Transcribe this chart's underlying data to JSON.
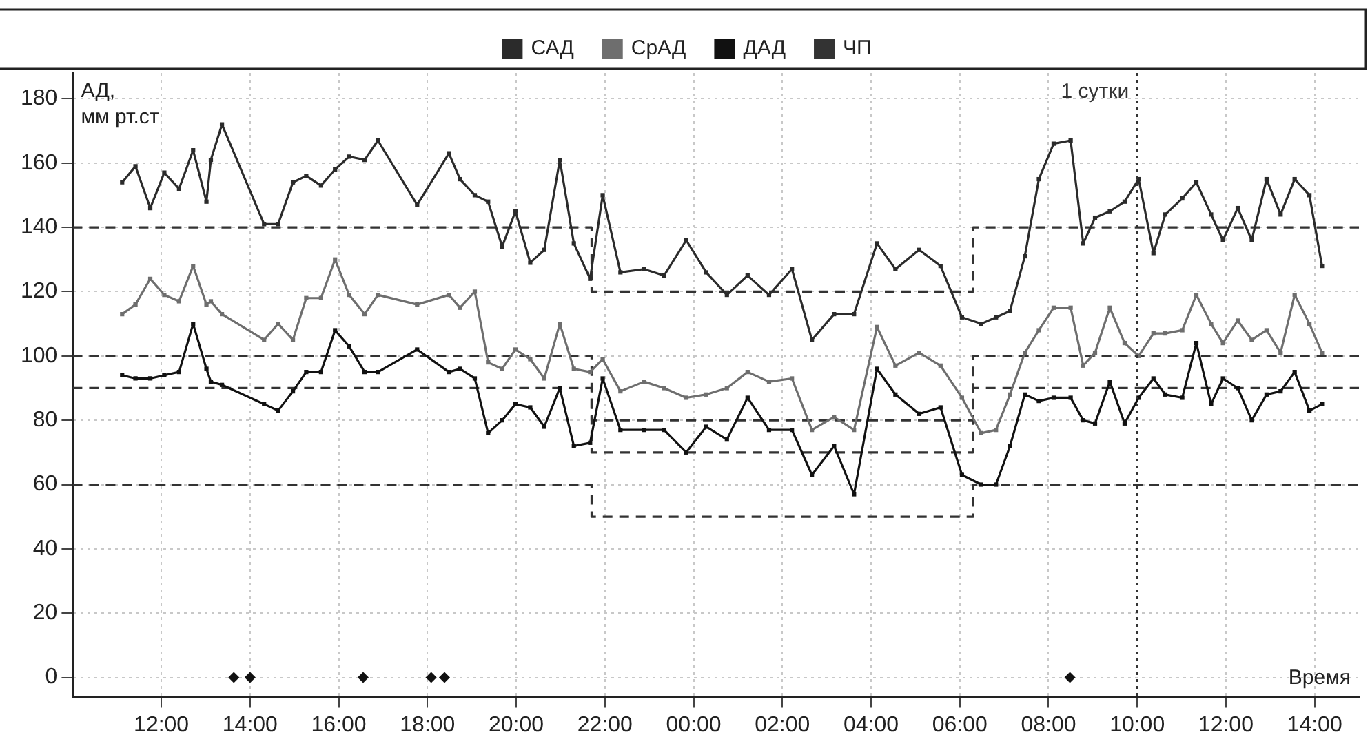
{
  "chart_data": {
    "type": "line",
    "ylabel": "АД, мм рт.ст",
    "xlabel": "Время",
    "marker": "square",
    "line_style": "solid",
    "grid": true,
    "legend": "top",
    "xlim": [
      "2000-01-01T10:00",
      "2000-01-02T15:00"
    ],
    "ylim": [
      -6,
      188
    ],
    "xticks": [
      {
        "value": "2000-01-01T12:00",
        "label": "12:00"
      },
      {
        "value": "2000-01-01T14:00",
        "label": "14:00"
      },
      {
        "value": "2000-01-01T16:00",
        "label": "16:00"
      },
      {
        "value": "2000-01-01T18:00",
        "label": "18:00"
      },
      {
        "value": "2000-01-01T20:00",
        "label": "20:00"
      },
      {
        "value": "2000-01-01T22:00",
        "label": "22:00"
      },
      {
        "value": "2000-01-02T00:00",
        "label": "00:00"
      },
      {
        "value": "2000-01-02T02:00",
        "label": "02:00"
      },
      {
        "value": "2000-01-02T04:00",
        "label": "04:00"
      },
      {
        "value": "2000-01-02T06:00",
        "label": "06:00"
      },
      {
        "value": "2000-01-02T08:00",
        "label": "08:00"
      },
      {
        "value": "2000-01-02T10:00",
        "label": "10:00"
      },
      {
        "value": "2000-01-02T12:00",
        "label": "12:00"
      },
      {
        "value": "2000-01-02T14:00",
        "label": "14:00"
      }
    ],
    "yticks": [
      0,
      20,
      40,
      60,
      80,
      100,
      120,
      140,
      160,
      180
    ],
    "x": [
      "2000-01-01T11:07",
      "2000-01-01T11:25",
      "2000-01-01T11:45",
      "2000-01-01T12:04",
      "2000-01-01T12:24",
      "2000-01-01T12:43",
      "2000-01-01T13:01",
      "2000-01-01T13:07",
      "2000-01-01T13:22",
      "2000-01-01T14:19",
      "2000-01-01T14:38",
      "2000-01-01T14:58",
      "2000-01-01T15:16",
      "2000-01-01T15:36",
      "2000-01-01T15:55",
      "2000-01-01T16:14",
      "2000-01-01T16:35",
      "2000-01-01T16:53",
      "2000-01-01T17:46",
      "2000-01-01T18:29",
      "2000-01-01T18:44",
      "2000-01-01T19:04",
      "2000-01-01T19:22",
      "2000-01-01T19:41",
      "2000-01-01T19:59",
      "2000-01-01T20:19",
      "2000-01-01T20:38",
      "2000-01-01T20:59",
      "2000-01-01T21:18",
      "2000-01-01T21:40",
      "2000-01-01T21:57",
      "2000-01-01T22:21",
      "2000-01-01T22:53",
      "2000-01-01T23:20",
      "2000-01-01T23:50",
      "2000-01-02T00:17",
      "2000-01-02T00:45",
      "2000-01-02T01:13",
      "2000-01-02T01:42",
      "2000-01-02T02:13",
      "2000-01-02T02:40",
      "2000-01-02T03:10",
      "2000-01-02T03:37",
      "2000-01-02T04:08",
      "2000-01-02T04:33",
      "2000-01-02T05:05",
      "2000-01-02T05:34",
      "2000-01-02T06:03",
      "2000-01-02T06:29",
      "2000-01-02T06:49",
      "2000-01-02T07:08",
      "2000-01-02T07:28",
      "2000-01-02T07:47",
      "2000-01-02T08:07",
      "2000-01-02T08:30",
      "2000-01-02T08:47",
      "2000-01-02T09:03",
      "2000-01-02T09:23",
      "2000-01-02T09:43",
      "2000-01-02T10:02",
      "2000-01-02T10:22",
      "2000-01-02T10:38",
      "2000-01-02T11:01",
      "2000-01-02T11:20",
      "2000-01-02T11:40",
      "2000-01-02T11:56",
      "2000-01-02T12:16",
      "2000-01-02T12:35",
      "2000-01-02T12:55",
      "2000-01-02T13:14",
      "2000-01-02T13:33",
      "2000-01-02T13:53",
      "2000-01-02T14:10"
    ],
    "series": [
      {
        "name": "САД",
        "color": "#2b2b2b",
        "values": [
          154,
          159,
          146,
          157,
          152,
          164,
          148,
          161,
          172,
          141,
          141,
          154,
          156,
          153,
          158,
          162,
          161,
          167,
          147,
          163,
          155,
          150,
          148,
          134,
          145,
          129,
          133,
          161,
          135,
          124,
          150,
          126,
          127,
          125,
          136,
          126,
          119,
          125,
          119,
          127,
          105,
          113,
          113,
          135,
          127,
          133,
          128,
          112,
          110,
          112,
          114,
          131,
          155,
          166,
          167,
          135,
          143,
          145,
          148,
          155,
          132,
          144,
          149,
          154,
          144,
          136,
          146,
          136,
          155,
          144,
          155,
          150,
          128
        ]
      },
      {
        "name": "СрАД",
        "color": "#6e6e6e",
        "values": [
          113,
          116,
          124,
          119,
          117,
          128,
          116,
          117,
          113,
          105,
          110,
          105,
          118,
          118,
          130,
          119,
          113,
          119,
          116,
          119,
          115,
          120,
          98,
          96,
          102,
          99,
          93,
          110,
          96,
          95,
          99,
          89,
          92,
          90,
          87,
          88,
          90,
          95,
          92,
          93,
          77,
          81,
          77,
          109,
          97,
          101,
          97,
          87,
          76,
          77,
          88,
          101,
          108,
          115,
          115,
          97,
          101,
          115,
          104,
          100,
          107,
          107,
          108,
          119,
          110,
          104,
          111,
          105,
          108,
          101,
          119,
          110,
          101
        ]
      },
      {
        "name": "ДАД",
        "color": "#111111",
        "values": [
          94,
          93,
          93,
          94,
          95,
          110,
          96,
          92,
          91,
          85,
          83,
          89,
          95,
          95,
          108,
          103,
          95,
          95,
          102,
          95,
          96,
          93,
          76,
          80,
          85,
          84,
          78,
          90,
          72,
          73,
          93,
          77,
          77,
          77,
          70,
          78,
          74,
          87,
          77,
          77,
          63,
          72,
          57,
          96,
          88,
          82,
          84,
          63,
          60,
          60,
          72,
          88,
          86,
          87,
          87,
          80,
          79,
          92,
          79,
          87,
          93,
          88,
          87,
          104,
          85,
          93,
          90,
          80,
          88,
          89,
          95,
          83,
          85
        ]
      },
      {
        "name": "ЧП",
        "color": "#333333",
        "values": [
          null,
          null,
          null,
          null,
          null,
          null,
          null,
          null,
          null,
          null,
          null,
          null,
          null,
          null,
          null,
          null,
          null,
          null,
          null,
          null,
          null,
          null,
          null,
          null,
          null,
          null,
          null,
          null,
          null,
          null,
          null,
          null,
          null,
          null,
          null,
          null,
          null,
          null,
          null,
          null,
          null,
          null,
          null,
          null,
          null,
          null,
          null,
          null,
          null,
          null,
          null,
          null,
          null,
          null,
          null,
          null,
          null,
          null,
          null,
          null,
          null,
          null,
          null,
          null,
          null,
          null,
          null,
          null,
          null,
          null,
          null,
          null,
          null
        ]
      },
      {
        "type": "scatter",
        "marker": "diamond",
        "color": "#111111",
        "x": [
          "2000-01-01T13:38",
          "2000-01-01T14:00",
          "2000-01-01T16:33",
          "2000-01-01T18:05",
          "2000-01-01T18:23",
          "2000-01-02T08:29"
        ],
        "values": [
          0,
          0,
          0,
          0,
          0,
          0
        ]
      },
      {
        "line_style": "dashed",
        "marker": "none",
        "color": "#333333",
        "x": [
          "2000-01-01T10:00",
          "2000-01-01T21:42",
          "2000-01-01T21:42",
          "2000-01-02T06:18",
          "2000-01-02T06:18",
          "2000-01-02T15:00"
        ],
        "values": [
          140,
          140,
          120,
          120,
          140,
          140
        ]
      },
      {
        "line_style": "dashed",
        "marker": "none",
        "color": "#333333",
        "x": [
          "2000-01-01T10:00",
          "2000-01-01T21:42",
          "2000-01-01T21:42",
          "2000-01-02T06:18",
          "2000-01-02T06:18",
          "2000-01-02T15:00"
        ],
        "values": [
          100,
          100,
          80,
          80,
          100,
          100
        ]
      },
      {
        "line_style": "dashed",
        "marker": "none",
        "color": "#333333",
        "x": [
          "2000-01-01T10:00",
          "2000-01-01T21:42",
          "2000-01-01T21:42",
          "2000-01-02T06:18",
          "2000-01-02T06:18",
          "2000-01-02T15:00"
        ],
        "values": [
          90,
          90,
          70,
          70,
          90,
          90
        ]
      },
      {
        "line_style": "dashed",
        "marker": "none",
        "color": "#333333",
        "x": [
          "2000-01-01T10:00",
          "2000-01-01T21:42",
          "2000-01-01T21:42",
          "2000-01-02T06:18",
          "2000-01-02T06:18",
          "2000-01-02T15:00"
        ],
        "values": [
          60,
          60,
          50,
          50,
          60,
          60
        ]
      }
    ],
    "ref_lines": [
      {
        "axis": "x",
        "value": "2000-01-02T10:00",
        "label": "1 сутки",
        "color": "#333333",
        "line_style": "dotted"
      }
    ]
  }
}
